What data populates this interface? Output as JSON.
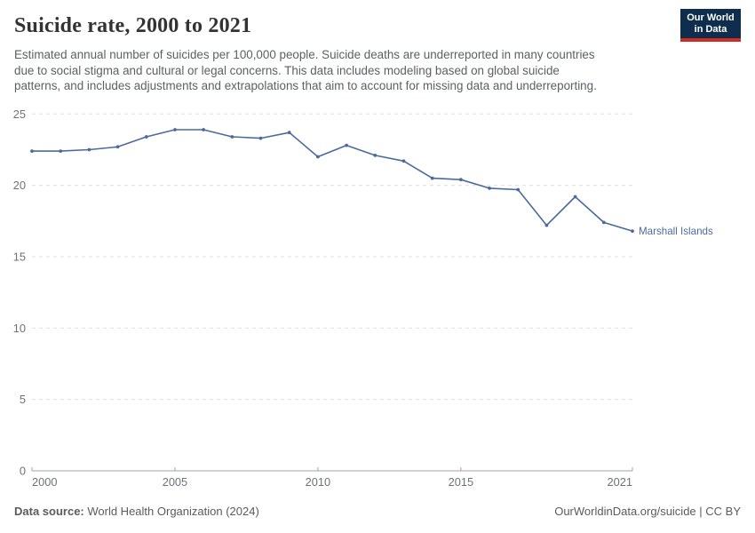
{
  "header": {
    "title": "Suicide rate, 2000 to 2021",
    "subtitle_lines": [
      "Estimated annual number of suicides per 100,000 people. Suicide deaths are underreported in many countries",
      "due to social stigma and cultural or legal concerns. This data includes modeling based on global suicide",
      "patterns, and includes adjustments and extrapolations that aim to account for missing data and underreporting."
    ],
    "logo": {
      "line1": "Our World",
      "line2": "in Data"
    }
  },
  "chart_data": {
    "type": "line",
    "title": "Suicide rate, 2000 to 2021",
    "x": [
      2000,
      2001,
      2002,
      2003,
      2004,
      2005,
      2006,
      2007,
      2008,
      2009,
      2010,
      2011,
      2012,
      2013,
      2014,
      2015,
      2016,
      2017,
      2018,
      2019,
      2020,
      2021
    ],
    "series": [
      {
        "name": "Marshall Islands",
        "color": "#4c6a9c",
        "values": [
          22.4,
          22.4,
          22.5,
          22.7,
          23.4,
          23.9,
          23.9,
          23.4,
          23.3,
          23.7,
          22.0,
          22.8,
          22.1,
          21.7,
          20.5,
          20.4,
          19.8,
          19.7,
          17.2,
          19.2,
          17.4,
          16.8
        ]
      }
    ],
    "xlabel": "",
    "ylabel": "",
    "xlim": [
      2000,
      2021
    ],
    "ylim": [
      0,
      25
    ],
    "x_ticks": [
      2000,
      2005,
      2010,
      2015,
      2021
    ],
    "y_ticks": [
      0,
      5,
      10,
      15,
      20,
      25
    ],
    "grid": "horizontal-dashed",
    "legend_position": "end-of-line-label"
  },
  "footer": {
    "source_label": "Data source:",
    "source_value": " World Health Organization (2024)",
    "attribution": "OurWorldinData.org/suicide | CC BY"
  },
  "colors": {
    "line": "#4c6a9c",
    "grid": "#e0e0e0",
    "axis": "#a3a3a3",
    "tick_text": "#6e7276",
    "logo_navy": "#0f2e4d",
    "logo_red": "#cf2d23",
    "title_text": "#333333",
    "subtitle_text": "#5b6066",
    "footer_text": "#5b5b5b"
  }
}
